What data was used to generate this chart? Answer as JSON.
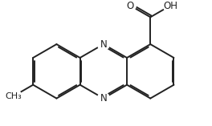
{
  "bg_color": "#ffffff",
  "line_color": "#222222",
  "line_width": 1.4,
  "dbo": 0.055,
  "font_size": 8.5,
  "figsize": [
    2.64,
    1.57
  ],
  "dpi": 100,
  "xlim": [
    -3.2,
    3.5
  ],
  "ylim": [
    -2.0,
    2.4
  ]
}
